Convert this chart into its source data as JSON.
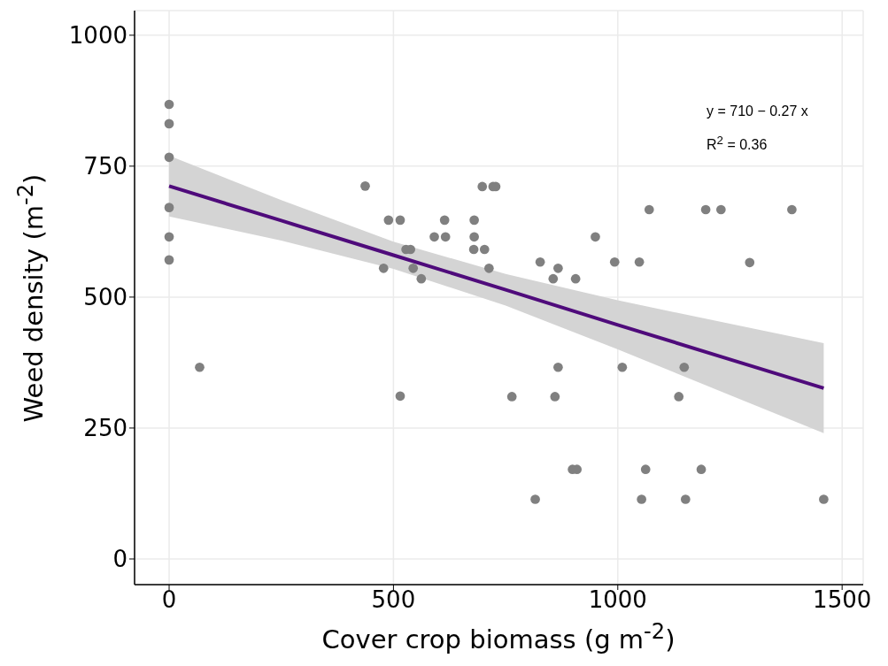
{
  "chart_data": {
    "type": "scatter",
    "xlabel": "Cover crop biomass (g m$^{-2}$)",
    "ylabel": "Weed density (m$^{-2}$)",
    "annotations": [
      "y = 710 − 0.27 x",
      "R$^{2}$ = 0.36"
    ],
    "xlim": [
      -77,
      1547
    ],
    "xticks": [
      0,
      500,
      1000,
      1500
    ],
    "ylim": [
      -49,
      1047
    ],
    "yticks": [
      0,
      250,
      500,
      750,
      1000
    ],
    "grid": true,
    "series": [
      {
        "marker": "circle",
        "color": "#808080",
        "x": [
          0,
          0,
          0,
          0,
          0,
          0,
          68,
          437,
          489,
          515,
          528,
          538,
          478,
          544,
          562,
          591,
          698,
          722,
          728,
          614,
          680,
          616,
          680,
          679,
          703,
          713,
          827,
          867,
          856,
          906,
          950,
          993,
          1048,
          1070,
          1196,
          1230,
          1388,
          1294,
          867,
          1010,
          1148,
          764,
          860,
          1136,
          899,
          909,
          1062,
          1186,
          816,
          1053,
          1151,
          1459,
          515
        ],
        "values": [
          868,
          831,
          767,
          671,
          615,
          571,
          366,
          712,
          647,
          647,
          591,
          591,
          555,
          555,
          535,
          615,
          711,
          711,
          711,
          647,
          647,
          615,
          615,
          591,
          591,
          555,
          567,
          555,
          535,
          535,
          615,
          567,
          567,
          667,
          667,
          667,
          667,
          566,
          366,
          366,
          366,
          310,
          310,
          310,
          171,
          171,
          171,
          171,
          114,
          114,
          114,
          114,
          311
        ]
      },
      {
        "type": "line",
        "marker": "none",
        "color": "#4f0b7b",
        "x": [
          0,
          250,
          500,
          750,
          1000,
          1250,
          1459
        ],
        "values": [
          712,
          646,
          580,
          514,
          447,
          381,
          326
        ],
        "lower": [
          654,
          608,
          554,
          484,
          400,
          313,
          240
        ],
        "upper": [
          770,
          685,
          606,
          544,
          494,
          449,
          412
        ]
      }
    ]
  }
}
